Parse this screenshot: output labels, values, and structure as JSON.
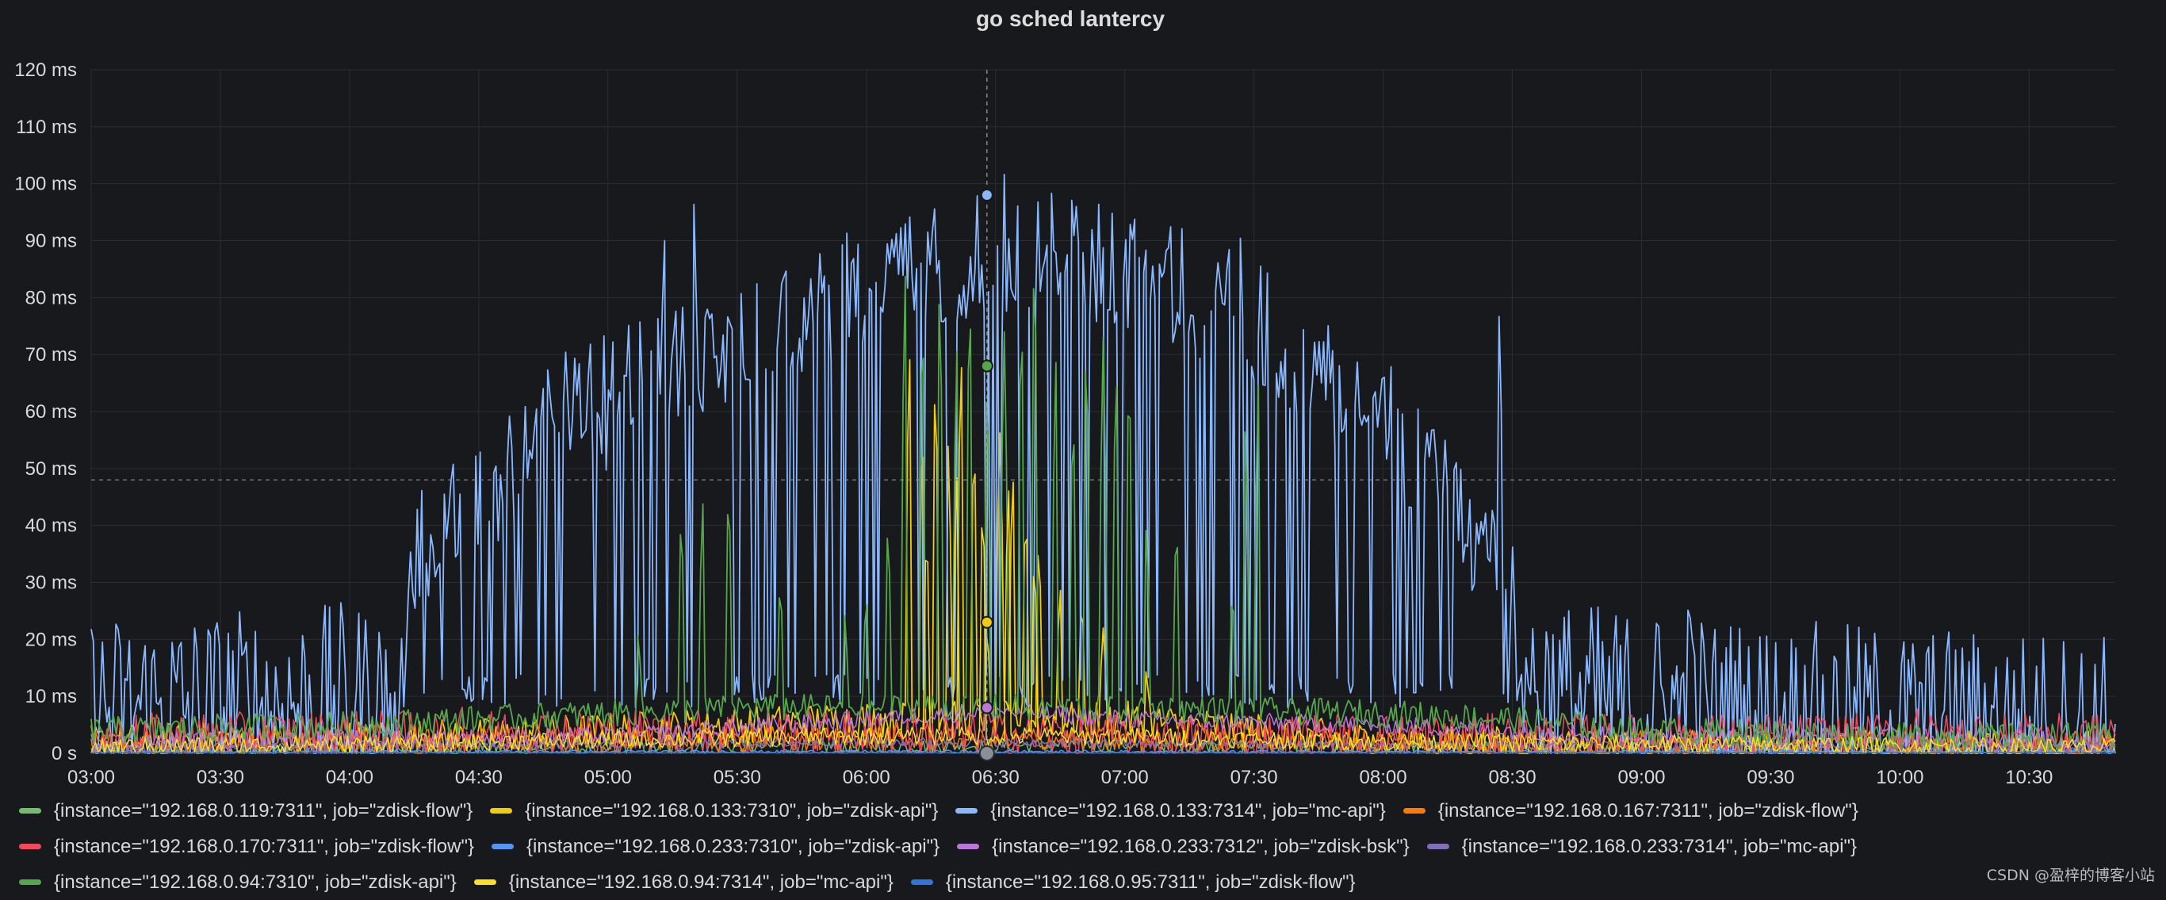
{
  "panel": {
    "title": "go sched lantercy"
  },
  "colors": {
    "background": "#18191d",
    "grid": "#2c2d31",
    "threshold": "#8e8e8e"
  },
  "watermark": "CSDN @盈梓的博客小站",
  "chart_data": {
    "type": "line",
    "title": "go sched lantercy",
    "x_range": [
      "03:00",
      "10:50"
    ],
    "x_ticks": [
      "03:00",
      "03:30",
      "04:00",
      "04:30",
      "05:00",
      "05:30",
      "06:00",
      "06:30",
      "07:00",
      "07:30",
      "08:00",
      "08:30",
      "09:00",
      "09:30",
      "10:00",
      "10:30"
    ],
    "y_ticks": [
      "0 s",
      "10 ms",
      "20 ms",
      "30 ms",
      "40 ms",
      "50 ms",
      "60 ms",
      "70 ms",
      "80 ms",
      "90 ms",
      "100 ms",
      "110 ms",
      "120 ms"
    ],
    "ylim": [
      0,
      120
    ],
    "y_unit": "ms",
    "grid": true,
    "legend_position": "bottom",
    "threshold_line": 48,
    "crosshair_x": "06:28",
    "tooltip_points": [
      {
        "series": "{instance=\"192.168.0.133:7314\", job=\"mc-api\"}",
        "y": 98
      },
      {
        "series": "{instance=\"192.168.0.94:7310\", job=\"zdisk-api\"}",
        "y": 68
      },
      {
        "series": "{instance=\"192.168.0.133:7310\", job=\"zdisk-api\"}",
        "y": 23
      },
      {
        "series": "{instance=\"192.168.0.233:7312\", job=\"zdisk-bsk\"}",
        "y": 8
      },
      {
        "series": "{instance=\"192.168.0.95:7311\", job=\"zdisk-flow\"}",
        "y": 0
      }
    ],
    "series": [
      {
        "name": "{instance=\"192.168.0.119:7311\", job=\"zdisk-flow\"}",
        "color": "#73bf69",
        "shape": [
          [
            "03:00",
            0.5
          ],
          [
            "05:00",
            1
          ],
          [
            "07:00",
            1.5
          ],
          [
            "09:00",
            0.8
          ],
          [
            "10:50",
            0.5
          ]
        ],
        "noise": 1.5,
        "spikes": []
      },
      {
        "name": "{instance=\"192.168.0.133:7310\", job=\"zdisk-api\"}",
        "color": "#f2cc0c",
        "shape": [
          [
            "03:00",
            2
          ],
          [
            "04:30",
            3
          ],
          [
            "05:00",
            4
          ],
          [
            "05:30",
            5
          ],
          [
            "06:00",
            6
          ],
          [
            "07:00",
            6
          ],
          [
            "07:30",
            4
          ],
          [
            "08:00",
            2
          ],
          [
            "09:00",
            1
          ],
          [
            "10:50",
            1
          ]
        ],
        "noise": 4,
        "spikes": [
          [
            "06:10",
            73
          ],
          [
            "06:13",
            60
          ],
          [
            "06:16",
            68
          ],
          [
            "06:19",
            55
          ],
          [
            "06:22",
            72
          ],
          [
            "06:25",
            57
          ],
          [
            "06:28",
            23
          ],
          [
            "06:31",
            57
          ],
          [
            "06:34",
            51
          ],
          [
            "06:37",
            44
          ],
          [
            "06:40",
            38
          ],
          [
            "06:45",
            30
          ],
          [
            "06:50",
            28
          ],
          [
            "06:55",
            22
          ],
          [
            "07:05",
            15
          ]
        ]
      },
      {
        "name": "{instance=\"192.168.0.133:7314\", job=\"mc-api\"}",
        "color": "#8ab8ff",
        "shape": [
          [
            "03:00",
            7
          ],
          [
            "03:30",
            8
          ],
          [
            "04:00",
            9
          ],
          [
            "04:10",
            9
          ],
          [
            "04:15",
            45
          ],
          [
            "04:30",
            55
          ],
          [
            "04:45",
            68
          ],
          [
            "05:00",
            75
          ],
          [
            "05:15",
            80
          ],
          [
            "05:30",
            82
          ],
          [
            "05:45",
            88
          ],
          [
            "06:00",
            93
          ],
          [
            "06:15",
            97
          ],
          [
            "06:30",
            99
          ],
          [
            "06:45",
            99
          ],
          [
            "07:00",
            96
          ],
          [
            "07:15",
            92
          ],
          [
            "07:30",
            87
          ],
          [
            "07:45",
            78
          ],
          [
            "08:00",
            70
          ],
          [
            "08:15",
            55
          ],
          [
            "08:30",
            40
          ],
          [
            "08:35",
            10
          ],
          [
            "09:00",
            8
          ],
          [
            "09:30",
            6
          ],
          [
            "10:00",
            5
          ],
          [
            "10:50",
            4
          ]
        ],
        "noise": 22,
        "spikes": [
          [
            "04:47",
            61
          ],
          [
            "05:00",
            66
          ],
          [
            "05:13",
            100
          ],
          [
            "05:20",
            99
          ],
          [
            "05:50",
            97
          ],
          [
            "06:32",
            103
          ],
          [
            "06:35",
            102
          ],
          [
            "07:27",
            99
          ],
          [
            "08:27",
            81
          ],
          [
            "08:38",
            23
          ],
          [
            "09:11",
            29
          ],
          [
            "09:40",
            14
          ]
        ]
      },
      {
        "name": "{instance=\"192.168.0.167:7311\", job=\"zdisk-flow\"}",
        "color": "#ff780a",
        "shape": [
          [
            "03:00",
            1.5
          ],
          [
            "06:00",
            2.5
          ],
          [
            "08:00",
            2
          ],
          [
            "10:50",
            1
          ]
        ],
        "noise": 3,
        "spikes": []
      },
      {
        "name": "{instance=\"192.168.0.170:7311\", job=\"zdisk-flow\"}",
        "color": "#f2495c",
        "shape": [
          [
            "03:00",
            3
          ],
          [
            "05:00",
            4
          ],
          [
            "07:00",
            3
          ],
          [
            "08:30",
            3
          ],
          [
            "10:50",
            3
          ]
        ],
        "noise": 5,
        "spikes": [
          [
            "04:26",
            9
          ],
          [
            "06:28",
            9
          ],
          [
            "10:04",
            8
          ],
          [
            "10:18",
            7
          ],
          [
            "10:30",
            6
          ],
          [
            "10:49",
            6
          ]
        ]
      },
      {
        "name": "{instance=\"192.168.0.233:7310\", job=\"zdisk-api\"}",
        "color": "#5794f2",
        "shape": [
          [
            "03:00",
            0.3
          ],
          [
            "10:50",
            0.3
          ]
        ],
        "noise": 0.3,
        "spikes": []
      },
      {
        "name": "{instance=\"192.168.0.233:7312\", job=\"zdisk-bsk\"}",
        "color": "#b877d9",
        "shape": [
          [
            "03:00",
            2
          ],
          [
            "05:00",
            3
          ],
          [
            "06:30",
            7.5
          ],
          [
            "07:00",
            6
          ],
          [
            "08:00",
            5
          ],
          [
            "09:00",
            3
          ],
          [
            "10:00",
            3
          ],
          [
            "10:50",
            2
          ]
        ],
        "noise": 2,
        "spikes": []
      },
      {
        "name": "{instance=\"192.168.0.233:7314\", job=\"mc-api\"}",
        "color": "#806eb7",
        "shape": [
          [
            "03:00",
            1
          ],
          [
            "06:00",
            2
          ],
          [
            "08:00",
            1.5
          ],
          [
            "10:50",
            1
          ]
        ],
        "noise": 1,
        "spikes": []
      },
      {
        "name": "{instance=\"192.168.0.94:7310\", job=\"zdisk-api\"}",
        "color": "#56a64b",
        "shape": [
          [
            "03:00",
            4
          ],
          [
            "04:00",
            5
          ],
          [
            "04:30",
            6
          ],
          [
            "05:00",
            7
          ],
          [
            "05:30",
            8
          ],
          [
            "06:00",
            8
          ],
          [
            "07:00",
            8
          ],
          [
            "08:00",
            7
          ],
          [
            "08:30",
            6
          ],
          [
            "09:00",
            4
          ],
          [
            "10:00",
            3
          ],
          [
            "10:50",
            3
          ]
        ],
        "noise": 3,
        "spikes": [
          [
            "05:07",
            22
          ],
          [
            "05:17",
            43
          ],
          [
            "05:22",
            45
          ],
          [
            "05:28",
            48
          ],
          [
            "05:40",
            31
          ],
          [
            "05:55",
            25
          ],
          [
            "06:00",
            29
          ],
          [
            "06:05",
            41
          ],
          [
            "06:09",
            86
          ],
          [
            "06:13",
            80
          ],
          [
            "06:17",
            85
          ],
          [
            "06:21",
            73
          ],
          [
            "06:24",
            84
          ],
          [
            "06:28",
            68
          ],
          [
            "06:32",
            75
          ],
          [
            "06:36",
            80
          ],
          [
            "06:39",
            92
          ],
          [
            "06:44",
            70
          ],
          [
            "06:48",
            62
          ],
          [
            "06:51",
            75
          ],
          [
            "06:55",
            73
          ],
          [
            "06:58",
            70
          ],
          [
            "07:01",
            70
          ],
          [
            "07:05",
            41
          ],
          [
            "07:12",
            42
          ],
          [
            "07:25",
            30
          ],
          [
            "07:28",
            60
          ],
          [
            "07:31",
            66
          ]
        ]
      },
      {
        "name": "{instance=\"192.168.0.94:7314\", job=\"mc-api\"}",
        "color": "#fade2a",
        "shape": [
          [
            "03:00",
            1
          ],
          [
            "06:00",
            3
          ],
          [
            "07:00",
            3
          ],
          [
            "08:00",
            2
          ],
          [
            "10:50",
            1
          ]
        ],
        "noise": 2,
        "spikes": [
          [
            "06:14",
            40
          ],
          [
            "06:21",
            50
          ],
          [
            "06:27",
            45
          ],
          [
            "06:33",
            48
          ],
          [
            "06:39",
            35
          ]
        ]
      },
      {
        "name": "{instance=\"192.168.0.95:7311\", job=\"zdisk-flow\"}",
        "color": "#3274d9",
        "shape": [
          [
            "03:00",
            0.1
          ],
          [
            "10:50",
            0.1
          ]
        ],
        "noise": 0.1,
        "spikes": []
      }
    ]
  }
}
